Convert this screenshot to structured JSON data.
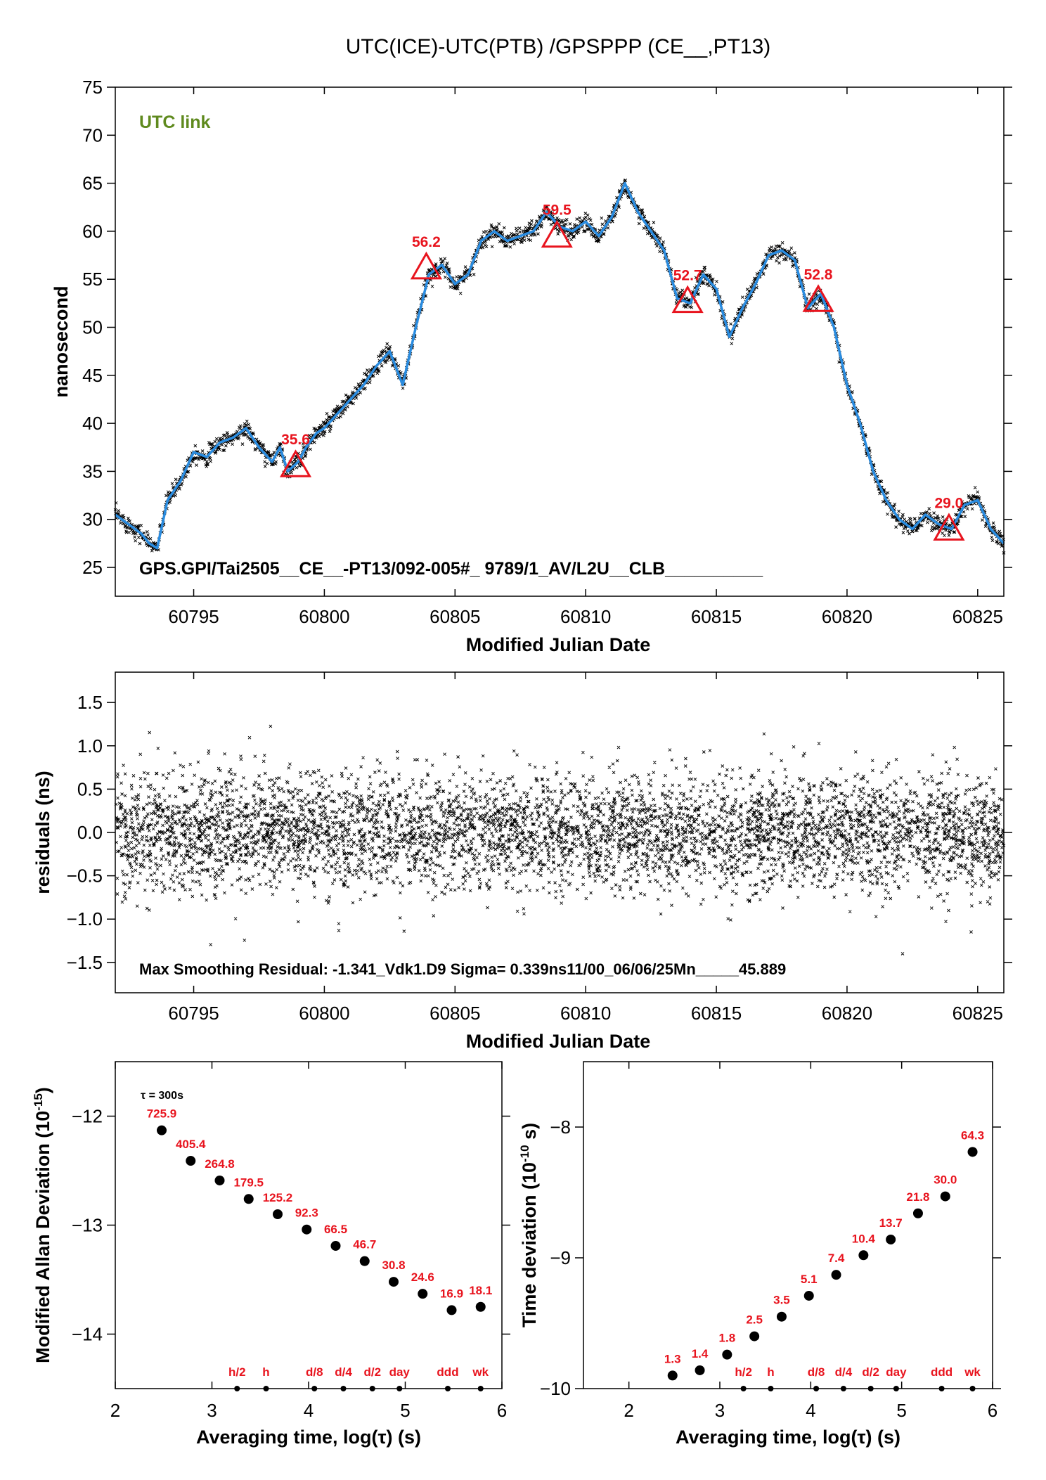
{
  "title": "UTC(ICE)-UTC(PTB)  /GPSPPP  (CE__,PT13)",
  "colors": {
    "scatter": "#000000",
    "smooth": "#2a8ce0",
    "marker": "#e8141e",
    "accent_text": "#e8141e",
    "link_text": "#5f8a1e"
  },
  "chart_data": [
    {
      "id": "time-series",
      "type": "line",
      "xlabel": "Modified Julian Date",
      "ylabel": "nanosecond",
      "xlim": [
        60792,
        60826
      ],
      "ylim": [
        22,
        75
      ],
      "xticks": [
        60795,
        60800,
        60805,
        60810,
        60815,
        60820,
        60825
      ],
      "yticks": [
        25,
        30,
        35,
        40,
        45,
        50,
        55,
        60,
        65,
        70,
        75
      ],
      "annotation": "UTC link",
      "footer": "GPS.GPI/Tai2505__CE__-PT13/092-005#_  9789/1_AV/L2U__CLB__________",
      "series": [
        {
          "x": [
            60792.0,
            60792.5,
            60793.0,
            60793.3,
            60793.6,
            60794.0,
            60794.5,
            60795.0,
            60795.5,
            60796.0,
            60796.5,
            60797.0,
            60797.5,
            60798.0,
            60798.3,
            60798.6,
            60799.0,
            60799.3,
            60799.7,
            60800.0,
            60800.5,
            60801.0,
            60801.5,
            60802.0,
            60802.5,
            60803.0,
            60803.5,
            60804.0,
            60804.5,
            60805.0,
            60805.5,
            60806.0,
            60806.5,
            60807.0,
            60807.5,
            60808.0,
            60808.5,
            60809.0,
            60809.5,
            60810.0,
            60810.5,
            60811.0,
            60811.5,
            60812.0,
            60812.5,
            60813.0,
            60813.5,
            60814.0,
            60814.5,
            60815.0,
            60815.5,
            60816.0,
            60816.5,
            60817.0,
            60817.5,
            60818.0,
            60818.5,
            60819.0,
            60819.5,
            60820.0,
            60820.5,
            60821.0,
            60821.5,
            60822.0,
            60822.5,
            60823.0,
            60823.5,
            60824.0,
            60824.5,
            60825.0,
            60825.5,
            60826.0
          ],
          "y": [
            30.5,
            29.5,
            28.5,
            27.5,
            27.0,
            32.0,
            34.0,
            37.0,
            36.5,
            38.0,
            38.5,
            39.5,
            37.5,
            36.0,
            37.5,
            35.0,
            36.0,
            37.5,
            39.0,
            39.5,
            41.0,
            42.5,
            44.0,
            46.0,
            47.5,
            44.0,
            50.0,
            55.5,
            56.5,
            54.5,
            55.5,
            59.0,
            60.0,
            59.0,
            59.5,
            60.0,
            62.0,
            60.5,
            60.0,
            61.0,
            59.5,
            61.5,
            65.0,
            62.0,
            60.0,
            58.0,
            53.0,
            52.5,
            55.5,
            54.0,
            49.0,
            52.0,
            54.5,
            57.5,
            58.0,
            57.0,
            52.0,
            53.5,
            50.0,
            44.0,
            40.0,
            35.0,
            32.0,
            30.0,
            29.0,
            30.5,
            29.5,
            29.0,
            31.5,
            32.0,
            29.0,
            27.5
          ]
        }
      ],
      "markers": [
        {
          "x": 60798.9,
          "y": 35.6,
          "label": "35.6"
        },
        {
          "x": 60803.9,
          "y": 56.2,
          "label": "56.2"
        },
        {
          "x": 60808.9,
          "y": 59.5,
          "label": "59.5"
        },
        {
          "x": 60813.9,
          "y": 52.7,
          "label": "52.7"
        },
        {
          "x": 60818.9,
          "y": 52.8,
          "label": "52.8"
        },
        {
          "x": 60823.9,
          "y": 29.0,
          "label": "29.0"
        }
      ]
    },
    {
      "id": "residuals",
      "type": "scatter",
      "xlabel": "Modified Julian Date",
      "ylabel": "residuals (ns)",
      "xlim": [
        60792,
        60826
      ],
      "ylim": [
        -1.85,
        1.85
      ],
      "xticks": [
        60795,
        60800,
        60805,
        60810,
        60815,
        60820,
        60825
      ],
      "yticks": [
        -1.5,
        -1.0,
        -0.5,
        0.0,
        0.5,
        1.0,
        1.5
      ],
      "ytick_labels": [
        "−1.5",
        "−1.0",
        "−0.5",
        "0.0",
        "0.5",
        "1.0",
        "1.5"
      ],
      "sigma": 0.339,
      "footer": "Max Smoothing Residual: -1.341_Vdk1.D9  Sigma= 0.339ns11/00_06/06/25Mn_____45.889"
    },
    {
      "id": "mdev",
      "type": "scatter",
      "xlabel": "Averaging time, log(τ) (s)",
      "ylabel": "Modified Allan Deviation (10",
      "ylabel_sup": "-15",
      "ylabel_tail": ")",
      "xlim": [
        2,
        6
      ],
      "ylim": [
        -14.5,
        -11.5
      ],
      "xticks": [
        2,
        3,
        4,
        5,
        6
      ],
      "yticks": [
        -12,
        -13,
        -14
      ],
      "ytick_labels": [
        "−12",
        "−13",
        "−14"
      ],
      "tau_note": "τ = 300s",
      "x": [
        2.48,
        2.78,
        3.08,
        3.38,
        3.68,
        3.98,
        4.28,
        4.58,
        4.88,
        5.18,
        5.48,
        5.78
      ],
      "y": [
        -12.13,
        -12.41,
        -12.59,
        -12.76,
        -12.9,
        -13.04,
        -13.19,
        -13.33,
        -13.52,
        -13.63,
        -13.78,
        -13.75
      ],
      "labels": [
        "725.9",
        "405.4",
        "264.8",
        "179.5",
        "125.2",
        "92.3",
        "66.5",
        "46.7",
        "30.8",
        "24.6",
        "16.9",
        "18.1"
      ],
      "tau_marks": [
        {
          "x": 3.26,
          "label": "h/2"
        },
        {
          "x": 3.56,
          "label": "h"
        },
        {
          "x": 4.06,
          "label": "d/8"
        },
        {
          "x": 4.36,
          "label": "d/4"
        },
        {
          "x": 4.66,
          "label": "d/2"
        },
        {
          "x": 4.94,
          "label": "day"
        },
        {
          "x": 5.44,
          "label": "ddd"
        },
        {
          "x": 5.78,
          "label": "wk"
        }
      ]
    },
    {
      "id": "tdev",
      "type": "scatter",
      "xlabel": "Averaging time, log(τ) (s)",
      "ylabel": "Time deviation (10",
      "ylabel_sup": "-10",
      "ylabel_tail": " s)",
      "xlim": [
        1.5,
        6
      ],
      "ylim": [
        -10,
        -7.5
      ],
      "xticks": [
        2,
        3,
        4,
        5,
        6
      ],
      "yticks": [
        -8,
        -9,
        -10
      ],
      "ytick_labels": [
        "−8",
        "−9",
        "−10"
      ],
      "x": [
        2.48,
        2.78,
        3.08,
        3.38,
        3.68,
        3.98,
        4.28,
        4.58,
        4.88,
        5.18,
        5.48,
        5.78
      ],
      "y": [
        -9.9,
        -9.86,
        -9.74,
        -9.6,
        -9.45,
        -9.29,
        -9.13,
        -8.98,
        -8.86,
        -8.66,
        -8.53,
        -8.19
      ],
      "labels": [
        "1.3",
        "1.4",
        "1.8",
        "2.5",
        "3.5",
        "5.1",
        "7.4",
        "10.4",
        "13.7",
        "21.8",
        "30.0",
        "64.3"
      ],
      "tau_marks": [
        {
          "x": 3.26,
          "label": "h/2"
        },
        {
          "x": 3.56,
          "label": "h"
        },
        {
          "x": 4.06,
          "label": "d/8"
        },
        {
          "x": 4.36,
          "label": "d/4"
        },
        {
          "x": 4.66,
          "label": "d/2"
        },
        {
          "x": 4.94,
          "label": "day"
        },
        {
          "x": 5.44,
          "label": "ddd"
        },
        {
          "x": 5.78,
          "label": "wk"
        }
      ]
    }
  ]
}
